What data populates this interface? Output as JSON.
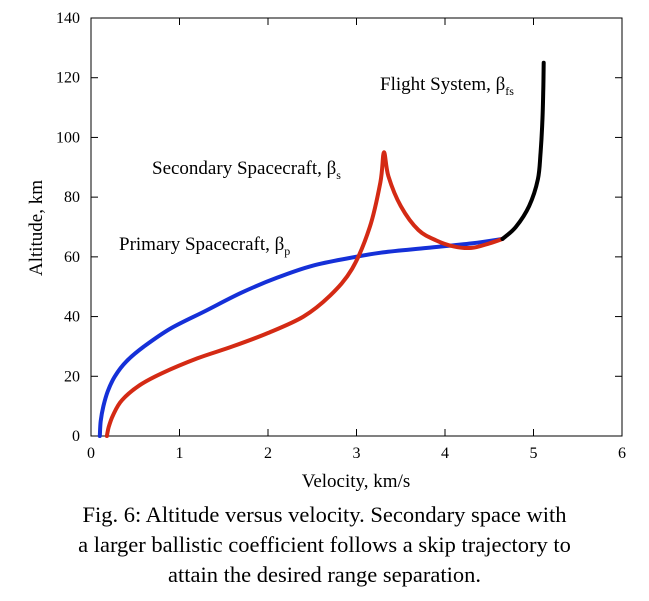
{
  "chart_data": {
    "type": "line",
    "xlabel": "Velocity, km/s",
    "ylabel": "Altitude, km",
    "xlim": [
      0,
      6
    ],
    "ylim": [
      0,
      140
    ],
    "xticks": [
      "0",
      "1",
      "2",
      "3",
      "4",
      "5",
      "6"
    ],
    "yticks": [
      "0",
      "20",
      "40",
      "60",
      "80",
      "100",
      "120",
      "140"
    ],
    "grid": false,
    "series": [
      {
        "name": "Primary Spacecraft, β",
        "sub": "p",
        "color": "#1530d8",
        "points": [
          [
            0.1,
            0
          ],
          [
            0.11,
            5
          ],
          [
            0.14,
            10
          ],
          [
            0.19,
            15
          ],
          [
            0.27,
            20
          ],
          [
            0.4,
            25
          ],
          [
            0.6,
            30
          ],
          [
            0.9,
            36
          ],
          [
            1.3,
            42
          ],
          [
            1.7,
            48
          ],
          [
            2.1,
            53
          ],
          [
            2.5,
            57
          ],
          [
            2.9,
            59.5
          ],
          [
            3.3,
            61.5
          ],
          [
            3.8,
            63
          ],
          [
            4.3,
            64.5
          ],
          [
            4.65,
            66
          ]
        ]
      },
      {
        "name": "Secondary Spacecraft, β",
        "sub": "s",
        "color": "#d42a14",
        "points": [
          [
            0.18,
            0
          ],
          [
            0.2,
            3
          ],
          [
            0.25,
            7
          ],
          [
            0.35,
            12
          ],
          [
            0.55,
            17
          ],
          [
            0.8,
            21
          ],
          [
            1.2,
            26
          ],
          [
            1.6,
            30
          ],
          [
            2.0,
            34.5
          ],
          [
            2.4,
            40
          ],
          [
            2.7,
            47
          ],
          [
            2.95,
            56
          ],
          [
            3.15,
            70
          ],
          [
            3.27,
            85
          ],
          [
            3.31,
            95
          ],
          [
            3.36,
            87
          ],
          [
            3.5,
            77
          ],
          [
            3.7,
            69
          ],
          [
            3.9,
            65.5
          ],
          [
            4.1,
            63.5
          ],
          [
            4.3,
            63
          ],
          [
            4.5,
            64.5
          ],
          [
            4.65,
            66
          ]
        ]
      },
      {
        "name": "Flight System, β",
        "sub": "fs",
        "color": "#000000",
        "points": [
          [
            4.65,
            66
          ],
          [
            4.8,
            70
          ],
          [
            4.95,
            77
          ],
          [
            5.05,
            86
          ],
          [
            5.08,
            95
          ],
          [
            5.1,
            105
          ],
          [
            5.11,
            115
          ],
          [
            5.115,
            125
          ]
        ]
      }
    ]
  },
  "caption": {
    "line1": "Fig. 6: Altitude versus velocity. Secondary space with",
    "line2": "a larger ballistic coefficient follows a skip trajectory to",
    "line3": "attain the desired range separation."
  }
}
